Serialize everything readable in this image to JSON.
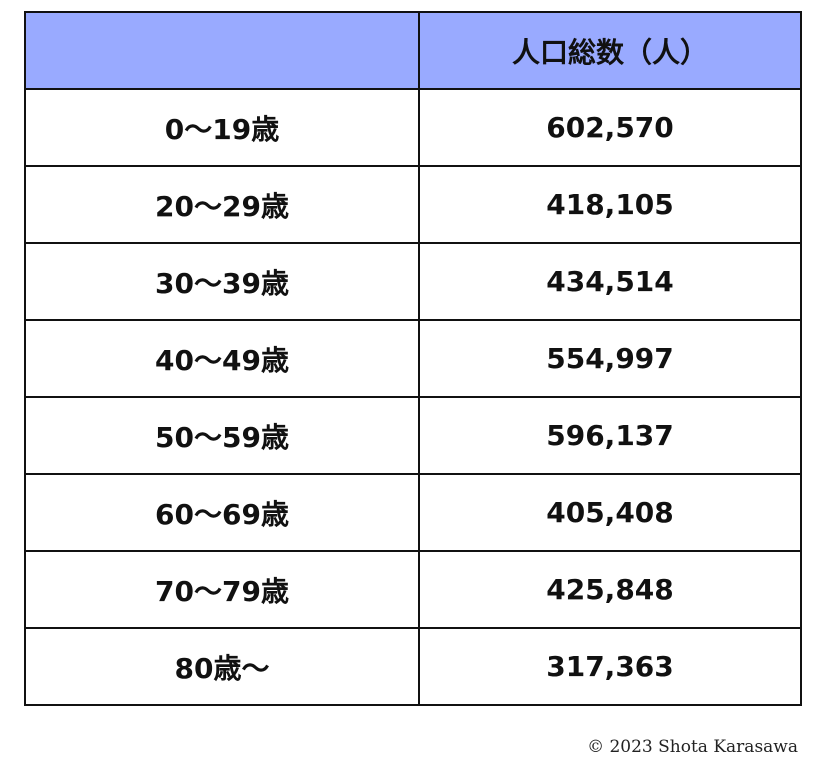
{
  "colors": {
    "header_background": "#99aaff",
    "border": "#111111"
  },
  "chart_data": {
    "type": "table",
    "columns": [
      "",
      "人口総数（人）"
    ],
    "rows": [
      {
        "age": "0〜19歳",
        "population": "602,570"
      },
      {
        "age": "20〜29歳",
        "population": "418,105"
      },
      {
        "age": "30〜39歳",
        "population": "434,514"
      },
      {
        "age": "40〜49歳",
        "population": "554,997"
      },
      {
        "age": "50〜59歳",
        "population": "596,137"
      },
      {
        "age": "60〜69歳",
        "population": "405,408"
      },
      {
        "age": "70〜79歳",
        "population": "425,848"
      },
      {
        "age": "80歳〜",
        "population": "317,363"
      }
    ]
  },
  "footer": {
    "copyright": "© 2023 Shota Karasawa"
  }
}
